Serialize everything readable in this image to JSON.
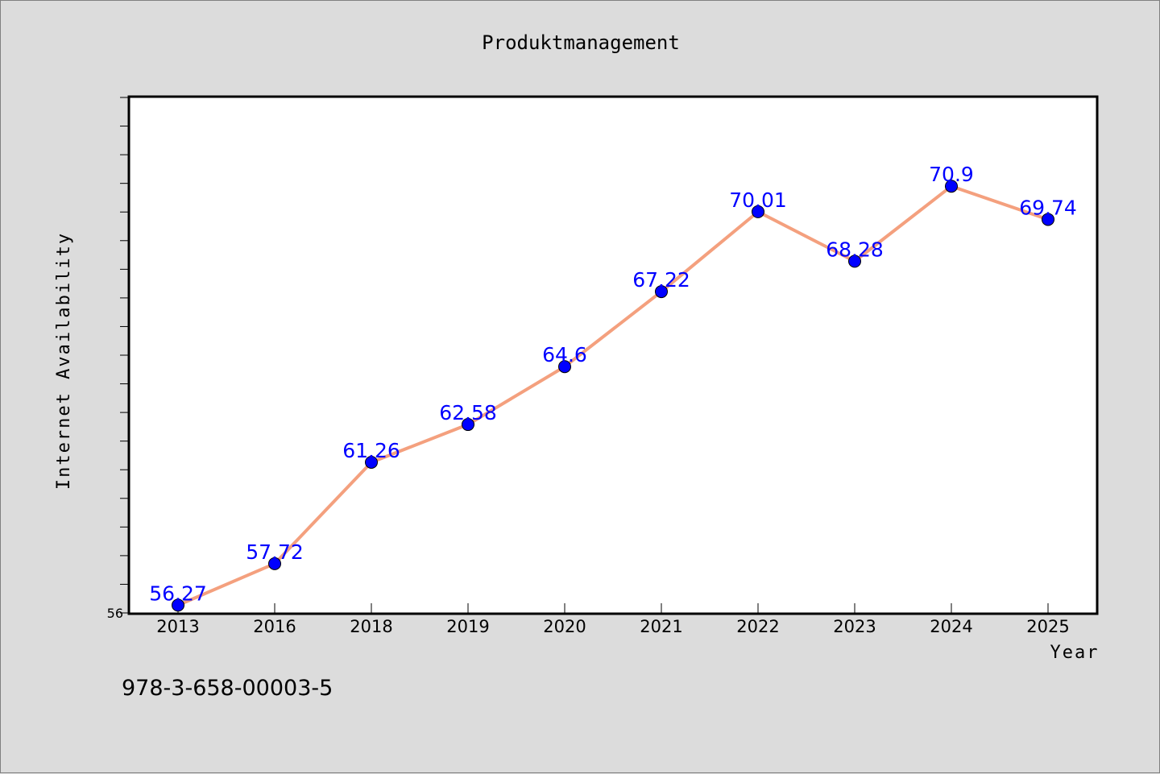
{
  "chart_data": {
    "type": "line",
    "title": "Produktmanagement",
    "xlabel": "Year",
    "ylabel": "Internet Availability",
    "categories": [
      "2013",
      "2016",
      "2018",
      "2019",
      "2020",
      "2021",
      "2022",
      "2023",
      "2024",
      "2025"
    ],
    "series": [
      {
        "values": [
          56.27,
          57.72,
          61.26,
          62.58,
          64.6,
          67.22,
          70.01,
          68.28,
          70.9,
          69.74
        ],
        "labels": [
          "56.27",
          "57.72",
          "61.26",
          "62.58",
          "64.6",
          "67.22",
          "70.01",
          "68.28",
          "70.9",
          "69.74"
        ]
      }
    ],
    "ylim": [
      56,
      74
    ],
    "yticks_labeled": [
      "56"
    ],
    "ytick_step": 1,
    "grid": false,
    "legend": "none",
    "colors": {
      "line": "#f4a07e",
      "marker": "#0000ff",
      "data_label": "#0000ff",
      "background": "#dcdcdc",
      "plot_background": "#ffffff"
    }
  },
  "footer": {
    "text": "978-3-658-00003-5"
  }
}
